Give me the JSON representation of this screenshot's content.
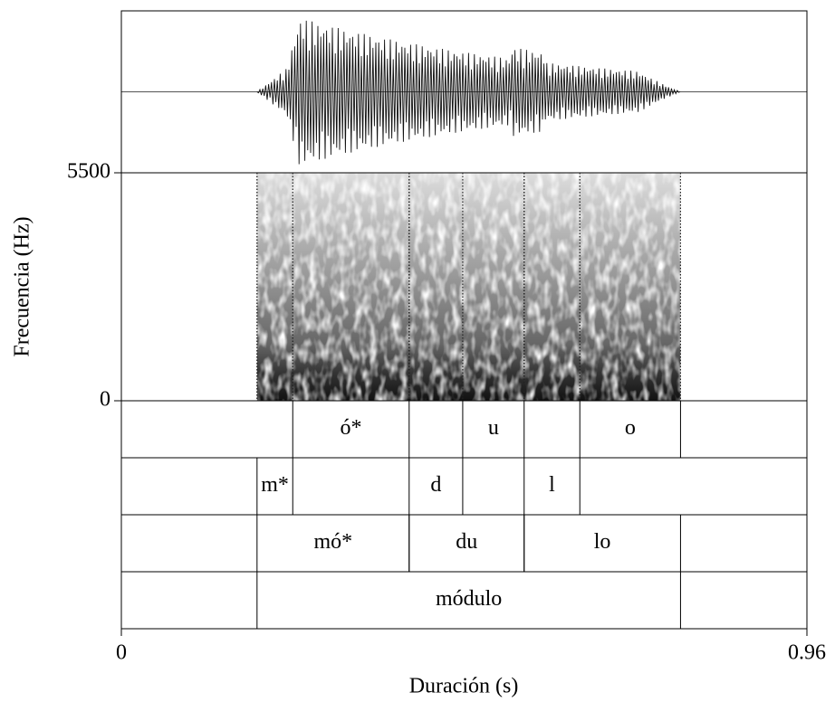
{
  "chart_data": {
    "type": "spectrogram",
    "xlabel": "Duración (s)",
    "ylabel": "Frecuencia (Hz)",
    "xlim": [
      0,
      0.96
    ],
    "xticks": [
      0,
      0.96
    ],
    "ylim": [
      0,
      5500
    ],
    "yticks": [
      0,
      5500
    ],
    "tiers": [
      {
        "intervals": [
          {
            "start": 0.24,
            "end": 0.403,
            "label": "ó*"
          },
          {
            "start": 0.478,
            "end": 0.564,
            "label": "u"
          },
          {
            "start": 0.642,
            "end": 0.783,
            "label": "o"
          }
        ]
      },
      {
        "intervals": [
          {
            "start": 0.19,
            "end": 0.24,
            "label": "m*"
          },
          {
            "start": 0.403,
            "end": 0.478,
            "label": "d"
          },
          {
            "start": 0.564,
            "end": 0.642,
            "label": "l"
          }
        ]
      },
      {
        "intervals": [
          {
            "start": 0.19,
            "end": 0.403,
            "label": "mó*"
          },
          {
            "start": 0.403,
            "end": 0.564,
            "label": "du"
          },
          {
            "start": 0.564,
            "end": 0.783,
            "label": "lo"
          }
        ]
      },
      {
        "intervals": [
          {
            "start": 0.19,
            "end": 0.783,
            "label": "módulo"
          }
        ]
      }
    ]
  }
}
